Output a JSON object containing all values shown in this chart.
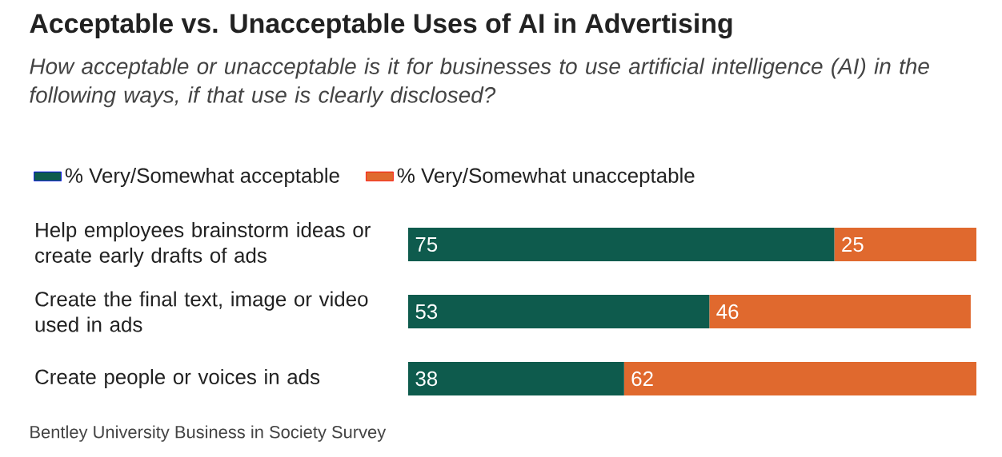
{
  "chart_data": {
    "type": "bar",
    "orientation": "horizontal",
    "stacked": true,
    "title": "Acceptable vs. Unacceptable Uses of AI in Advertising",
    "subtitle": "How acceptable or unacceptable is it for businesses to use artificial intelligence (AI) in the following ways, if that use is clearly disclosed?",
    "categories": [
      "Help employees brainstorm ideas or create early drafts of ads",
      "Create the final text, image or video used in ads",
      "Create people or voices in ads"
    ],
    "series": [
      {
        "name": "% Very/Somewhat acceptable",
        "color": "#0e5b4d",
        "values": [
          75,
          53,
          38
        ]
      },
      {
        "name": "% Very/Somewhat unacceptable",
        "color": "#e0692e",
        "values": [
          25,
          46,
          62
        ]
      }
    ],
    "data_labels": true,
    "legend": "top left",
    "tick_labels": "y",
    "annotations": [
      "Bentley University Business in Society Survey"
    ]
  }
}
